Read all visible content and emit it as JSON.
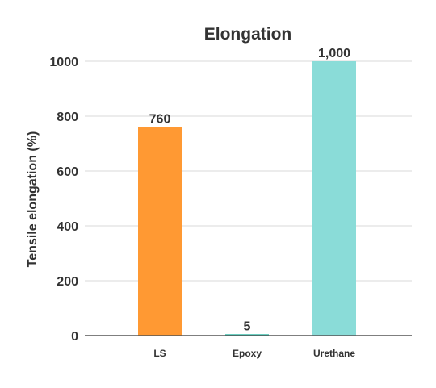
{
  "chart_data": {
    "type": "bar",
    "title": "Elongation",
    "xlabel": "",
    "ylabel": "Tensile elongation (%)",
    "categories": [
      "LS",
      "Epoxy",
      "Urethane"
    ],
    "values": [
      760,
      5,
      1000
    ],
    "value_labels": [
      "760",
      "5",
      "1,000"
    ],
    "colors": [
      "#ff9933",
      "#2eb8a6",
      "#8adcd8"
    ],
    "ylim": [
      0,
      1000
    ],
    "yticks": [
      "0",
      "200",
      "400",
      "600",
      "800",
      "1000"
    ],
    "grid": true,
    "legend": "none"
  }
}
